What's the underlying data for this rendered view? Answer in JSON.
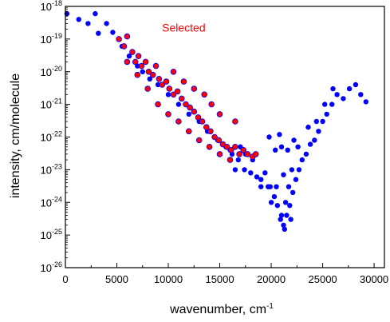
{
  "chart_data": {
    "type": "scatter",
    "title": "",
    "xlabel": {
      "text": "wavenumber, cm",
      "superscript": "-1"
    },
    "ylabel": "intensity, cm/molecule",
    "xlim": [
      0,
      31000
    ],
    "ylim": [
      1e-26,
      1e-18
    ],
    "yscale": "log",
    "grid": false,
    "legend": "none",
    "x_ticks": [
      {
        "value": 0,
        "label": "0"
      },
      {
        "value": 5000,
        "label": "5000"
      },
      {
        "value": 10000,
        "label": "10000"
      },
      {
        "value": 15000,
        "label": "15000"
      },
      {
        "value": 20000,
        "label": "20000"
      },
      {
        "value": 25000,
        "label": "25000"
      },
      {
        "value": 30000,
        "label": "30000"
      }
    ],
    "y_ticks": [
      {
        "value": -18,
        "base": "10",
        "exp": "-18"
      },
      {
        "value": -19,
        "base": "10",
        "exp": "-19"
      },
      {
        "value": -20,
        "base": "10",
        "exp": "-20"
      },
      {
        "value": -21,
        "base": "10",
        "exp": "-21"
      },
      {
        "value": -22,
        "base": "10",
        "exp": "-22"
      },
      {
        "value": -23,
        "base": "10",
        "exp": "-23"
      },
      {
        "value": -24,
        "base": "10",
        "exp": "-24"
      },
      {
        "value": -25,
        "base": "10",
        "exp": "-25"
      },
      {
        "value": -26,
        "base": "10",
        "exp": "-26"
      }
    ],
    "annotations": [
      {
        "text": "Selected",
        "color": "#ff0000",
        "x": 11500,
        "y": 1.7e-19
      }
    ],
    "series": [
      {
        "color": "#0000ff",
        "points": [
          [
            150,
            6e-19
          ],
          [
            2900,
            6e-19
          ],
          [
            1300,
            4e-19
          ],
          [
            4000,
            3e-19
          ],
          [
            2200,
            3e-19
          ],
          [
            3200,
            1.5e-19
          ],
          [
            4600,
            1.6e-19
          ],
          [
            5500,
            6e-20
          ],
          [
            6200,
            3e-20
          ],
          [
            7000,
            1.5e-20
          ],
          [
            7500,
            1e-20
          ],
          [
            8200,
            6e-21
          ],
          [
            9000,
            4e-21
          ],
          [
            10000,
            2e-21
          ],
          [
            11000,
            1e-21
          ],
          [
            12000,
            5e-22
          ],
          [
            13000,
            3e-22
          ],
          [
            13800,
            1.5e-22
          ],
          [
            14800,
            8e-23
          ],
          [
            15600,
            5e-23
          ],
          [
            16200,
            3e-23
          ],
          [
            16800,
            2e-23
          ],
          [
            17400,
            1e-23
          ],
          [
            18000,
            8e-24
          ],
          [
            18600,
            6e-24
          ],
          [
            19000,
            5e-24
          ],
          [
            19400,
            8e-24
          ],
          [
            19900,
            3e-24
          ],
          [
            20300,
            1.5e-24
          ],
          [
            20600,
            8e-25
          ],
          [
            20900,
            3e-25
          ],
          [
            21200,
            2e-25
          ],
          [
            21500,
            4e-25
          ],
          [
            21800,
            8e-25
          ],
          [
            22100,
            2e-24
          ],
          [
            22400,
            5e-24
          ],
          [
            22700,
            1e-23
          ],
          [
            23000,
            2e-23
          ],
          [
            23400,
            3e-23
          ],
          [
            23800,
            6e-23
          ],
          [
            24200,
            8e-23
          ],
          [
            24600,
            1.5e-22
          ],
          [
            25000,
            3e-22
          ],
          [
            25400,
            5e-22
          ],
          [
            25900,
            1e-21
          ],
          [
            26400,
            2e-21
          ],
          [
            27000,
            1.5e-21
          ],
          [
            27600,
            3e-21
          ],
          [
            28200,
            4e-21
          ],
          [
            28700,
            2e-21
          ],
          [
            29200,
            1.2e-21
          ],
          [
            19700,
            3e-24
          ],
          [
            19000,
            3e-24
          ],
          [
            18200,
            2e-23
          ],
          [
            17500,
            3e-23
          ],
          [
            16000,
            4e-23
          ],
          [
            16500,
            1e-23
          ],
          [
            17000,
            5e-23
          ],
          [
            20000,
            1e-24
          ],
          [
            21000,
            4e-25
          ],
          [
            21400,
            1e-24
          ],
          [
            21700,
            3e-24
          ],
          [
            22000,
            1e-23
          ],
          [
            22600,
            5e-23
          ],
          [
            23600,
            2e-22
          ],
          [
            24400,
            3e-22
          ],
          [
            25200,
            1e-21
          ],
          [
            26000,
            3e-21
          ],
          [
            19800,
            1e-22
          ],
          [
            20400,
            4e-23
          ],
          [
            21000,
            5e-23
          ],
          [
            21600,
            4e-23
          ],
          [
            22200,
            8e-23
          ],
          [
            20800,
            1.2e-22
          ],
          [
            21200,
            7e-24
          ],
          [
            21300,
            1.5e-25
          ],
          [
            20500,
            3e-24
          ],
          [
            21900,
            3e-25
          ]
        ]
      },
      {
        "color": "#ff0000",
        "points": [
          [
            5200,
            1e-19
          ],
          [
            5700,
            6e-20
          ],
          [
            6000,
            1.2e-19
          ],
          [
            6500,
            4e-20
          ],
          [
            6800,
            2e-20
          ],
          [
            7100,
            3e-20
          ],
          [
            7400,
            1.5e-20
          ],
          [
            7800,
            2e-20
          ],
          [
            8100,
            1e-20
          ],
          [
            8500,
            8e-21
          ],
          [
            8800,
            1.5e-20
          ],
          [
            9100,
            6e-21
          ],
          [
            9400,
            4e-21
          ],
          [
            9800,
            5e-21
          ],
          [
            10100,
            3e-21
          ],
          [
            10500,
            2e-21
          ],
          [
            10900,
            2.5e-21
          ],
          [
            11300,
            1.5e-21
          ],
          [
            11700,
            1e-21
          ],
          [
            12100,
            8e-22
          ],
          [
            12500,
            6e-22
          ],
          [
            12900,
            4e-22
          ],
          [
            13300,
            3e-22
          ],
          [
            13700,
            2e-22
          ],
          [
            14100,
            1.5e-22
          ],
          [
            14500,
            1e-22
          ],
          [
            14900,
            8e-23
          ],
          [
            15300,
            6e-23
          ],
          [
            15700,
            5e-23
          ],
          [
            16100,
            4e-23
          ],
          [
            16500,
            5e-23
          ],
          [
            16900,
            3e-23
          ],
          [
            17300,
            4e-23
          ],
          [
            17700,
            3e-23
          ],
          [
            18200,
            2.5e-23
          ],
          [
            18500,
            3e-23
          ],
          [
            8000,
            3e-21
          ],
          [
            9000,
            1e-21
          ],
          [
            10000,
            5e-22
          ],
          [
            11000,
            3e-22
          ],
          [
            12000,
            1.5e-22
          ],
          [
            13000,
            8e-23
          ],
          [
            14000,
            5e-23
          ],
          [
            15000,
            3e-23
          ],
          [
            16000,
            2e-23
          ],
          [
            7000,
            8e-21
          ],
          [
            6000,
            2e-20
          ],
          [
            10500,
            1e-20
          ],
          [
            11500,
            5e-21
          ],
          [
            13500,
            2e-21
          ],
          [
            14200,
            1e-21
          ],
          [
            15000,
            5e-22
          ],
          [
            16500,
            3e-22
          ],
          [
            12500,
            3e-21
          ]
        ]
      }
    ]
  }
}
